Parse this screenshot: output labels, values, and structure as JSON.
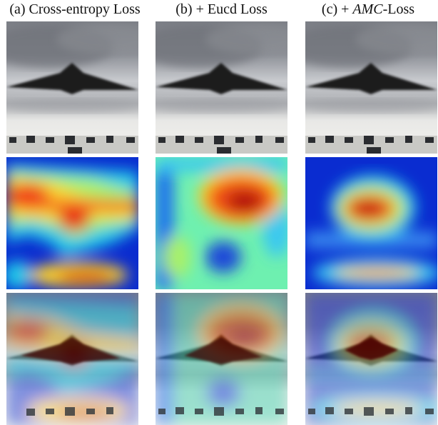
{
  "columns": [
    {
      "label": "(a) Cross-entropy Loss"
    },
    {
      "label_pre": "(c) + ",
      "label_italic": "AMC",
      "label_post": "-Loss"
    }
  ],
  "column_b_label": "(b) + Eucd Loss",
  "rows": [
    "input-image",
    "attention-heatmap",
    "heatmap-overlay"
  ],
  "colormap": "jet"
}
